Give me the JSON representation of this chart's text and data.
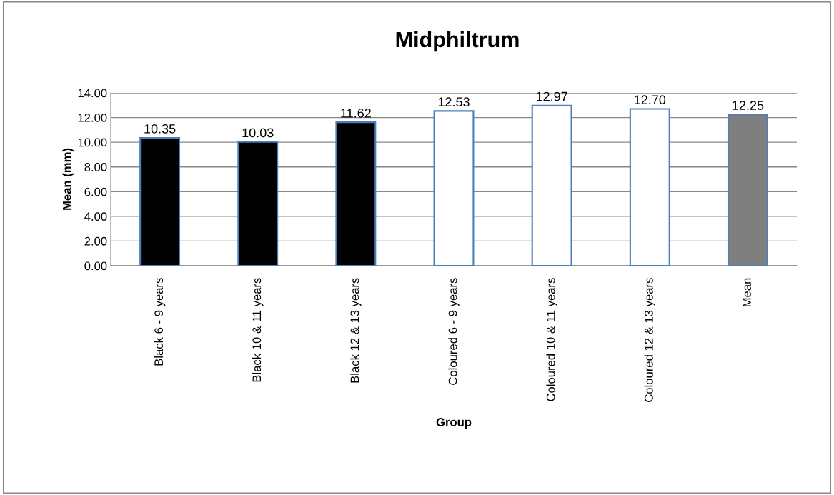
{
  "chart_data": {
    "type": "bar",
    "title": "Midphiltrum",
    "xlabel": "Group",
    "ylabel": "Mean (mm)",
    "categories": [
      "Black 6 - 9 years",
      "Black 10 & 11 years",
      "Black 12 & 13 years",
      "Coloured 6 - 9 years",
      "Coloured 10 & 11 years",
      "Coloured 12 & 13 years",
      "Mean"
    ],
    "values": [
      10.35,
      10.03,
      11.62,
      12.53,
      12.97,
      12.7,
      12.25
    ],
    "colors": [
      "#000000",
      "#000000",
      "#000000",
      "#ffffff",
      "#ffffff",
      "#ffffff",
      "#7f7f7f"
    ],
    "value_labels": [
      "10.35",
      "10.03",
      "11.62",
      "12.53",
      "12.97",
      "12.70",
      "12.25"
    ],
    "ylim": [
      0,
      14
    ],
    "yticks": [
      {
        "value": 0,
        "label": "0.00"
      },
      {
        "value": 2,
        "label": "2.00"
      },
      {
        "value": 4,
        "label": "4.00"
      },
      {
        "value": 6,
        "label": "6.00"
      },
      {
        "value": 8,
        "label": "8.00"
      },
      {
        "value": 10,
        "label": "10.00"
      },
      {
        "value": 12,
        "label": "12.00"
      },
      {
        "value": 14,
        "label": "14.00"
      }
    ],
    "grid": "y"
  }
}
